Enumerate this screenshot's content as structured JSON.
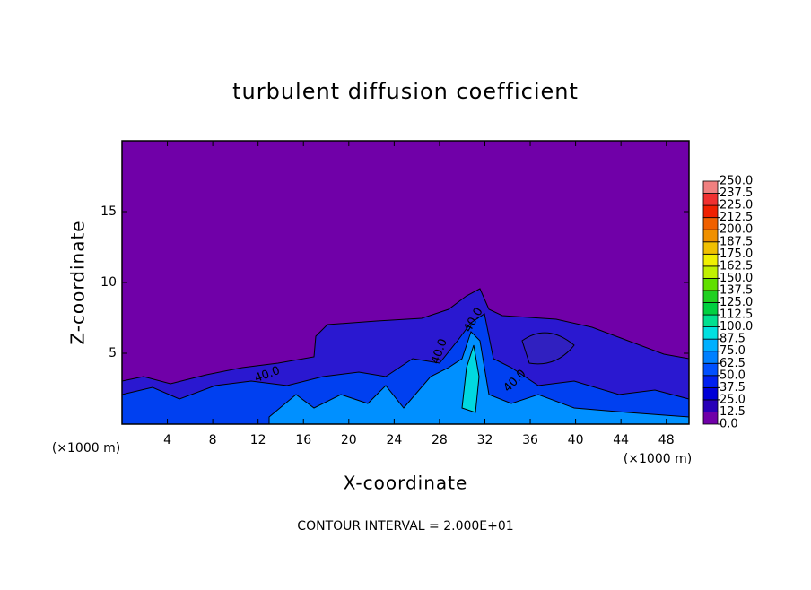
{
  "chart_data": {
    "type": "contour",
    "title": "turbulent diffusion coefficient",
    "xlabel": "X-coordinate",
    "ylabel": "Z-coordinate",
    "x_unit": "(×1000 m)",
    "y_unit": "(×1000 m)",
    "footer": "CONTOUR INTERVAL = 2.000E+01",
    "xlim": [
      0,
      50
    ],
    "ylim": [
      0,
      20
    ],
    "xticks": [
      4,
      8,
      12,
      16,
      20,
      24,
      28,
      32,
      36,
      40,
      44,
      48
    ],
    "yticks": [
      5,
      10,
      15
    ],
    "contour_labels": [
      "40.0",
      "40.0",
      "40.0",
      "40.0"
    ],
    "colorbar": {
      "ticks": [
        {
          "value": 0,
          "label": "0.0"
        },
        {
          "value": 12.5,
          "label": "12.5"
        },
        {
          "value": 25,
          "label": "25.0"
        },
        {
          "value": 37.5,
          "label": "37.5"
        },
        {
          "value": 50,
          "label": "50.0"
        },
        {
          "value": 62.5,
          "label": "62.5"
        },
        {
          "value": 75,
          "label": "75.0"
        },
        {
          "value": 87.5,
          "label": "87.5"
        },
        {
          "value": 100,
          "label": "100.0"
        },
        {
          "value": 112.5,
          "label": "112.5"
        },
        {
          "value": 125,
          "label": "125.0"
        },
        {
          "value": 137.5,
          "label": "137.5"
        },
        {
          "value": 150,
          "label": "150.0"
        },
        {
          "value": 162.5,
          "label": "162.5"
        },
        {
          "value": 175,
          "label": "175.0"
        },
        {
          "value": 187.5,
          "label": "187.5"
        },
        {
          "value": 200,
          "label": "200.0"
        },
        {
          "value": 212.5,
          "label": "212.5"
        },
        {
          "value": 225,
          "label": "225.0"
        },
        {
          "value": 237.5,
          "label": "237.5"
        },
        {
          "value": 250,
          "label": "250.0"
        }
      ],
      "colors": [
        "#7000a8",
        "#2800b8",
        "#0000d8",
        "#0020f0",
        "#0050ff",
        "#0080ff",
        "#00b0ff",
        "#00e0e0",
        "#00e090",
        "#00d040",
        "#20d020",
        "#60e000",
        "#c0f000",
        "#f0f000",
        "#f0c000",
        "#f09000",
        "#f06000",
        "#f02000",
        "#f03030",
        "#f08080"
      ]
    }
  }
}
